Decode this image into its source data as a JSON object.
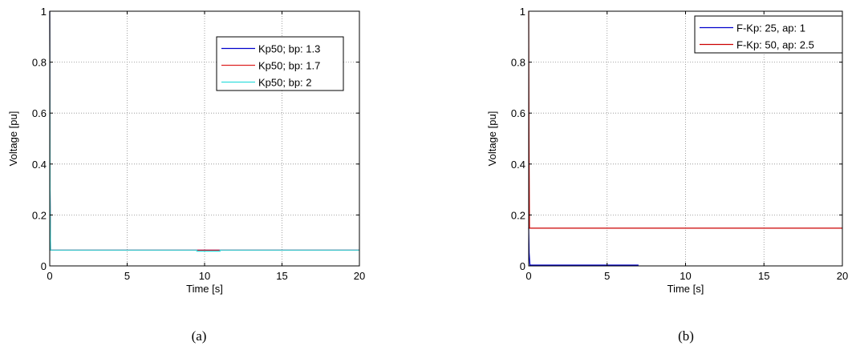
{
  "chart_data": [
    {
      "type": "line",
      "caption": "(a)",
      "xlabel": "Time [s]",
      "ylabel": "Voltage [pu]",
      "xlim": [
        0,
        20
      ],
      "ylim": [
        0,
        1
      ],
      "xticks": [
        "0",
        "5",
        "10",
        "15",
        "20"
      ],
      "yticks": [
        "0",
        "0.2",
        "0.4",
        "0.6",
        "0.8",
        "1"
      ],
      "grid": true,
      "legend_position": "top-right",
      "series": [
        {
          "name": "Kp50; bp: 1.3",
          "color": "#0000cc",
          "x": [
            0,
            0.02,
            0.05,
            20
          ],
          "y": [
            1,
            0.3,
            0.062,
            0.062
          ]
        },
        {
          "name": "Kp50; bp: 1.7",
          "color": "#dd2222",
          "x": [
            0,
            0.02,
            0.05,
            20
          ],
          "y": [
            1,
            0.3,
            0.062,
            0.062
          ]
        },
        {
          "name": "Kp50; bp: 2",
          "color": "#33dddd",
          "x": [
            0,
            0.02,
            0.05,
            9.5,
            9.5,
            11,
            11,
            20
          ],
          "y": [
            1,
            0.3,
            0.062,
            0.062,
            0.058,
            0.058,
            0.062,
            0.062
          ]
        }
      ]
    },
    {
      "type": "line",
      "caption": "(b)",
      "xlabel": "Time [s]",
      "ylabel": "Voltage [pu]",
      "xlim": [
        0,
        20
      ],
      "ylim": [
        0,
        1
      ],
      "xticks": [
        "0",
        "5",
        "10",
        "15",
        "20"
      ],
      "yticks": [
        "0",
        "0.2",
        "0.4",
        "0.6",
        "0.8",
        "1"
      ],
      "grid": true,
      "legend_position": "top-right",
      "series": [
        {
          "name": "F-Kp: 25, ap: 1",
          "color": "#0000cc",
          "x": [
            0,
            0.03,
            0.08,
            7
          ],
          "y": [
            0.15,
            0.05,
            0.003,
            0.003
          ]
        },
        {
          "name": "F-Kp: 50, ap: 2.5",
          "color": "#cc0000",
          "x": [
            0,
            0.02,
            0.05,
            20
          ],
          "y": [
            1,
            0.5,
            0.148,
            0.148
          ]
        }
      ]
    }
  ]
}
